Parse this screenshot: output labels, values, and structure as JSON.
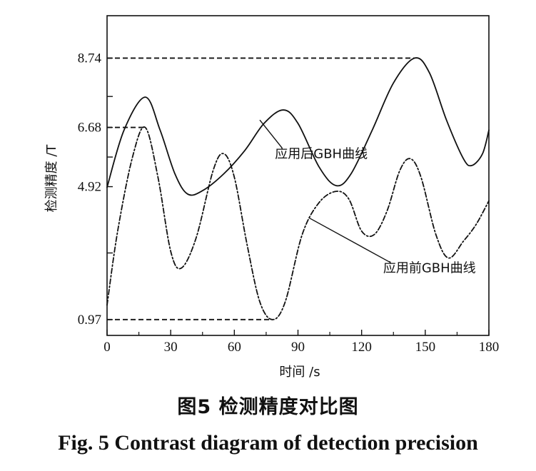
{
  "chart_data": {
    "type": "line",
    "xlabel": "时间 /s",
    "ylabel": "检测精度 /T",
    "xlim": [
      0,
      180
    ],
    "ylim": [
      0.5,
      10.0
    ],
    "x_ticks": [
      "0",
      "30",
      "60",
      "90",
      "120",
      "150",
      "180"
    ],
    "y_ticks": [
      "0.97",
      "4.92",
      "6.68",
      "8.74"
    ],
    "grid": false,
    "series": [
      {
        "name": "应用后GBH曲线",
        "style": "solid",
        "points": [
          [
            0,
            4.9
          ],
          [
            8,
            6.6
          ],
          [
            18,
            7.58
          ],
          [
            25,
            6.6
          ],
          [
            32,
            5.3
          ],
          [
            38,
            4.7
          ],
          [
            45,
            4.8
          ],
          [
            55,
            5.3
          ],
          [
            65,
            6.0
          ],
          [
            74,
            6.8
          ],
          [
            83,
            7.2
          ],
          [
            90,
            6.8
          ],
          [
            100,
            5.5
          ],
          [
            108,
            4.95
          ],
          [
            115,
            5.3
          ],
          [
            125,
            6.6
          ],
          [
            135,
            8.0
          ],
          [
            145,
            8.74
          ],
          [
            152,
            8.3
          ],
          [
            160,
            6.9
          ],
          [
            168,
            5.75
          ],
          [
            172,
            5.55
          ],
          [
            177,
            5.9
          ],
          [
            180,
            6.6
          ]
        ]
      },
      {
        "name": "应用前GBH曲线",
        "style": "dashdot",
        "points": [
          [
            0,
            1.4
          ],
          [
            5,
            3.6
          ],
          [
            12,
            5.8
          ],
          [
            18,
            6.68
          ],
          [
            24,
            5.2
          ],
          [
            30,
            3.0
          ],
          [
            35,
            2.5
          ],
          [
            42,
            3.4
          ],
          [
            50,
            5.4
          ],
          [
            55,
            5.9
          ],
          [
            60,
            5.2
          ],
          [
            66,
            3.2
          ],
          [
            72,
            1.5
          ],
          [
            78,
            0.97
          ],
          [
            84,
            1.5
          ],
          [
            92,
            3.5
          ],
          [
            100,
            4.45
          ],
          [
            108,
            4.78
          ],
          [
            114,
            4.55
          ],
          [
            120,
            3.6
          ],
          [
            126,
            3.5
          ],
          [
            132,
            4.2
          ],
          [
            138,
            5.4
          ],
          [
            143,
            5.75
          ],
          [
            148,
            5.2
          ],
          [
            155,
            3.5
          ],
          [
            161,
            2.8
          ],
          [
            168,
            3.3
          ],
          [
            174,
            3.8
          ],
          [
            180,
            4.5
          ]
        ]
      }
    ],
    "reference_lines": [
      {
        "y": 8.74,
        "x_start": 0,
        "x_end": 145
      },
      {
        "y": 6.68,
        "x_start": 0,
        "x_end": 18
      },
      {
        "y": 0.97,
        "x_start": 0,
        "x_end": 78
      }
    ],
    "annotations": [
      {
        "text": "应用后GBH曲线",
        "series": 0,
        "at": [
          72,
          6.9
        ],
        "label_at": [
          101,
          5.9
        ]
      },
      {
        "text": "应用前GBH曲线",
        "series": 1,
        "at": [
          95,
          4.0
        ],
        "label_at": [
          152,
          2.5
        ]
      }
    ]
  },
  "caption": {
    "cn": "图5  检测精度对比图",
    "en": "Fig. 5   Contrast diagram of detection precision"
  }
}
